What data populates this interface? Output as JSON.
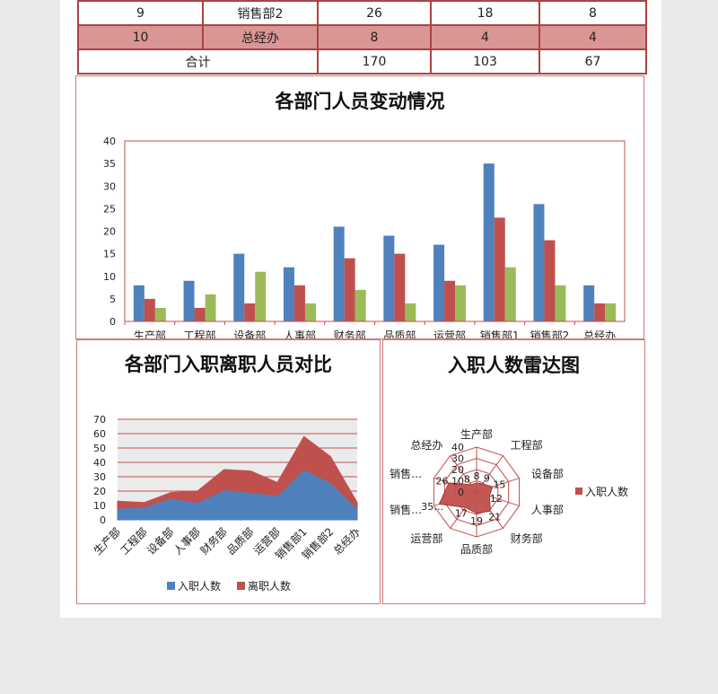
{
  "table": {
    "rows": [
      [
        "9",
        "销售部2",
        "26",
        "18",
        "8"
      ],
      [
        "10",
        "总经办",
        "8",
        "4",
        "4"
      ]
    ],
    "total_label": "合计",
    "totals": [
      "170",
      "103",
      "67"
    ]
  },
  "colors": {
    "blue": "#4f81bd",
    "red": "#c0504d",
    "green": "#9bbb59",
    "border": "#a94442",
    "highlight_row": "#da9694"
  },
  "chart_data": [
    {
      "type": "bar",
      "title": "各部门人员变动情况",
      "categories": [
        "生产部",
        "工程部",
        "设备部",
        "人事部",
        "财务部",
        "品质部",
        "运营部",
        "销售部1",
        "销售部2",
        "总经办"
      ],
      "series": [
        {
          "values": [
            8,
            9,
            15,
            12,
            21,
            19,
            17,
            35,
            26,
            8
          ],
          "color": "#4f81bd"
        },
        {
          "values": [
            5,
            3,
            4,
            8,
            14,
            15,
            9,
            23,
            18,
            4
          ],
          "color": "#c0504d"
        },
        {
          "values": [
            3,
            6,
            11,
            4,
            7,
            4,
            8,
            12,
            8,
            4
          ],
          "color": "#9bbb59"
        }
      ],
      "ylim": [
        0,
        40
      ],
      "yticks": [
        "0",
        "5",
        "10",
        "15",
        "20",
        "25",
        "30",
        "35",
        "40"
      ]
    },
    {
      "type": "area",
      "stacked": true,
      "title": "各部门入职离职人员对比",
      "categories": [
        "生产部",
        "工程部",
        "设备部",
        "人事部",
        "财务部",
        "品质部",
        "运营部",
        "销售部1",
        "销售部2",
        "总经办"
      ],
      "series": [
        {
          "name": "入职人数",
          "values": [
            8,
            9,
            15,
            12,
            21,
            19,
            17,
            35,
            26,
            8
          ],
          "color": "#4f81bd"
        },
        {
          "name": "离职人数",
          "values": [
            5,
            3,
            4,
            8,
            14,
            15,
            9,
            23,
            18,
            4
          ],
          "color": "#c0504d"
        }
      ],
      "ylim": [
        0,
        70
      ],
      "yticks": [
        "0",
        "10",
        "20",
        "30",
        "40",
        "50",
        "60",
        "70"
      ],
      "grid": true,
      "legend": "bottom"
    },
    {
      "type": "radar",
      "title": "入职人数雷达图",
      "categories": [
        "生产部",
        "工程部",
        "设备部",
        "人事部",
        "财务部",
        "品质部",
        "运营部",
        "销售…",
        "销售…",
        "总经办"
      ],
      "series": [
        {
          "name": "入职人数",
          "values": [
            8,
            9,
            15,
            12,
            21,
            19,
            17,
            35,
            26,
            8
          ],
          "color": "#c0504d"
        }
      ],
      "data_labels": [
        "8",
        "9",
        "15",
        "12",
        "21",
        "19",
        "17",
        "35…",
        "26",
        "8"
      ],
      "ylim": [
        0,
        40
      ],
      "rticks": [
        "0",
        "10",
        "20",
        "30",
        "40"
      ],
      "legend": "right"
    }
  ]
}
